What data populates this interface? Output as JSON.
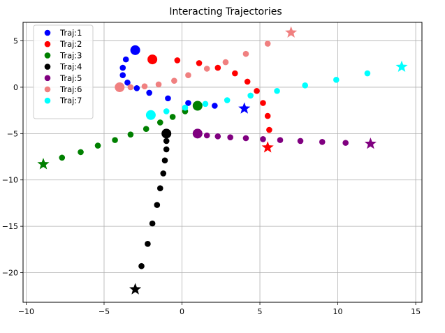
{
  "chart_data": {
    "type": "scatter",
    "title": "Interacting Trajectories",
    "xlabel": "",
    "ylabel": "",
    "xlim": [
      -10.2,
      15.4
    ],
    "ylim": [
      -23.2,
      7.0
    ],
    "xticks": [
      -10,
      -5,
      0,
      5,
      10,
      15
    ],
    "yticks": [
      5,
      0,
      -5,
      -10,
      -15,
      -20
    ],
    "grid": true,
    "legend_position": "top-left",
    "series": [
      {
        "name": "Traj:1",
        "color": "#0000ff",
        "start": [
          -3.0,
          4.0
        ],
        "end": [
          4.0,
          -2.3
        ],
        "points": [
          [
            -3.6,
            3.0
          ],
          [
            -3.8,
            2.1
          ],
          [
            -3.8,
            1.3
          ],
          [
            -3.5,
            0.5
          ],
          [
            -2.9,
            -0.1
          ],
          [
            -2.1,
            -0.6
          ],
          [
            -0.9,
            -1.2
          ],
          [
            0.4,
            -1.7
          ],
          [
            2.1,
            -2.0
          ]
        ]
      },
      {
        "name": "Traj:2",
        "color": "#ff0000",
        "start": [
          -1.9,
          3.0
        ],
        "end": [
          5.5,
          -6.5
        ],
        "points": [
          [
            -0.3,
            2.9
          ],
          [
            1.1,
            2.6
          ],
          [
            2.3,
            2.1
          ],
          [
            3.4,
            1.5
          ],
          [
            4.2,
            0.6
          ],
          [
            4.8,
            -0.4
          ],
          [
            5.2,
            -1.7
          ],
          [
            5.5,
            -3.1
          ],
          [
            5.6,
            -4.6
          ]
        ]
      },
      {
        "name": "Traj:3",
        "color": "#008000",
        "start": [
          1.0,
          -2.0
        ],
        "end": [
          -8.9,
          -8.3
        ],
        "points": [
          [
            0.2,
            -2.6
          ],
          [
            -0.6,
            -3.2
          ],
          [
            -1.4,
            -3.8
          ],
          [
            -2.3,
            -4.5
          ],
          [
            -3.3,
            -5.1
          ],
          [
            -4.3,
            -5.7
          ],
          [
            -5.4,
            -6.3
          ],
          [
            -6.5,
            -7.0
          ],
          [
            -7.7,
            -7.6
          ]
        ]
      },
      {
        "name": "Traj:4",
        "color": "#000000",
        "start": [
          -1.0,
          -5.0
        ],
        "end": [
          -3.0,
          -21.8
        ],
        "points": [
          [
            -1.0,
            -5.8
          ],
          [
            -1.0,
            -6.7
          ],
          [
            -1.1,
            -7.9
          ],
          [
            -1.2,
            -9.3
          ],
          [
            -1.4,
            -10.9
          ],
          [
            -1.6,
            -12.7
          ],
          [
            -1.9,
            -14.7
          ],
          [
            -2.2,
            -16.9
          ],
          [
            -2.6,
            -19.3
          ]
        ]
      },
      {
        "name": "Traj:5",
        "color": "#800080",
        "start": [
          1.0,
          -5.0
        ],
        "end": [
          12.1,
          -6.1
        ],
        "points": [
          [
            1.6,
            -5.2
          ],
          [
            2.3,
            -5.3
          ],
          [
            3.1,
            -5.4
          ],
          [
            4.1,
            -5.5
          ],
          [
            5.2,
            -5.6
          ],
          [
            6.3,
            -5.7
          ],
          [
            7.6,
            -5.8
          ],
          [
            9.0,
            -5.9
          ],
          [
            10.5,
            -6.0
          ]
        ]
      },
      {
        "name": "Traj:6",
        "color": "#f08080",
        "start": [
          -4.0,
          0.0
        ],
        "end": [
          7.0,
          5.9
        ],
        "points": [
          [
            -3.3,
            0.0
          ],
          [
            -2.4,
            0.1
          ],
          [
            -1.5,
            0.3
          ],
          [
            -0.5,
            0.7
          ],
          [
            0.4,
            1.3
          ],
          [
            1.6,
            2.0
          ],
          [
            2.8,
            2.7
          ],
          [
            4.1,
            3.6
          ],
          [
            5.5,
            4.7
          ]
        ]
      },
      {
        "name": "Traj:7",
        "color": "#00ffff",
        "start": [
          -2.0,
          -3.0
        ],
        "end": [
          14.1,
          2.2
        ],
        "points": [
          [
            -1.0,
            -2.6
          ],
          [
            0.2,
            -2.2
          ],
          [
            1.5,
            -1.8
          ],
          [
            2.9,
            -1.4
          ],
          [
            4.4,
            -0.9
          ],
          [
            6.1,
            -0.4
          ],
          [
            7.9,
            0.2
          ],
          [
            9.9,
            0.8
          ],
          [
            11.9,
            1.5
          ]
        ]
      }
    ]
  }
}
